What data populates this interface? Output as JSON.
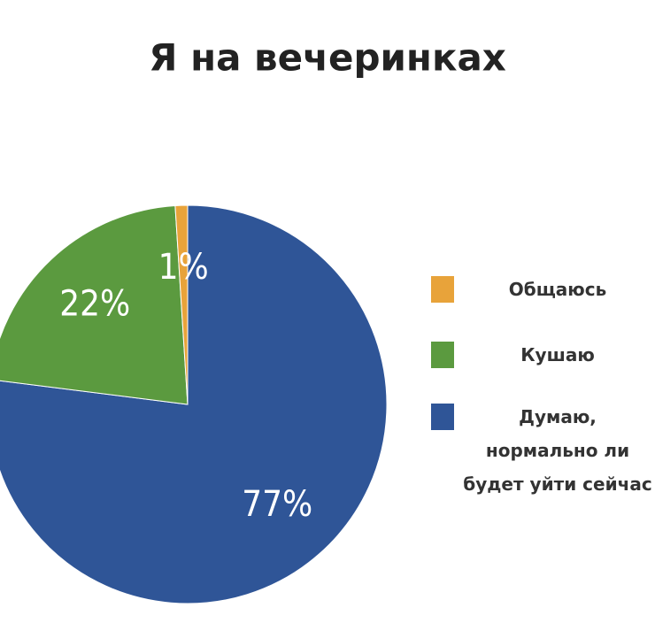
{
  "chart_data": {
    "type": "pie",
    "title": "Я на вечеринках",
    "categories": [
      "Общаюсь",
      "Кушаю",
      "Думаю, нормально ли будет уйти сейчас"
    ],
    "values": [
      1,
      22,
      77
    ],
    "value_labels": [
      "1%",
      "22%",
      "77%"
    ],
    "colors": [
      "#e8a33a",
      "#5b9a3f",
      "#2f5597"
    ]
  }
}
